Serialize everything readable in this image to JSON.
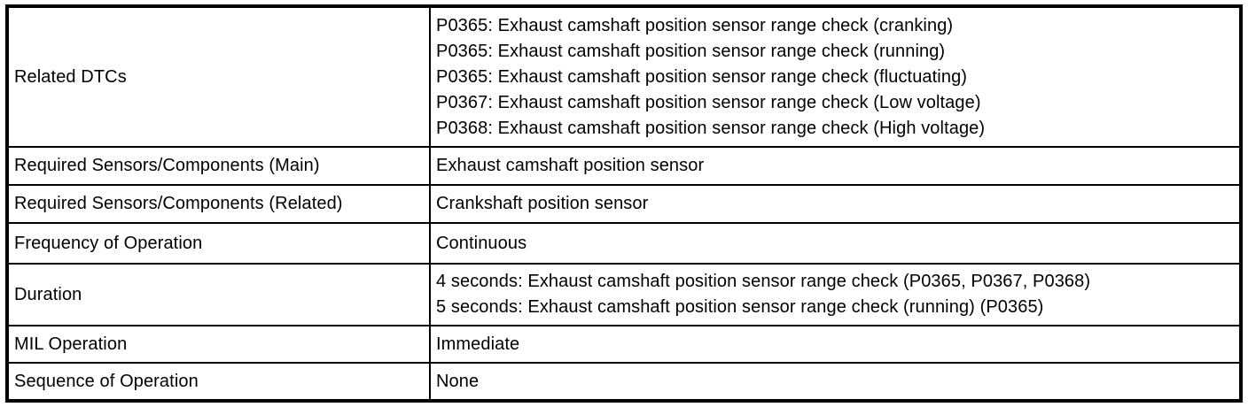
{
  "colors": {
    "border": "#000000",
    "text": "#000000",
    "background": "#ffffff"
  },
  "table": {
    "rows": [
      {
        "label": "Related DTCs",
        "values": [
          "P0365: Exhaust camshaft position sensor range check (cranking)",
          "P0365: Exhaust camshaft position sensor range check (running)",
          "P0365: Exhaust camshaft position sensor range check (fluctuating)",
          "P0367: Exhaust camshaft position sensor range check (Low voltage)",
          "P0368: Exhaust camshaft position sensor range check (High voltage)"
        ]
      },
      {
        "label": "Required Sensors/Components (Main)",
        "values": [
          "Exhaust camshaft position sensor"
        ]
      },
      {
        "label": "Required Sensors/Components (Related)",
        "values": [
          "Crankshaft position sensor"
        ]
      },
      {
        "label": "Frequency of Operation",
        "values": [
          "Continuous"
        ]
      },
      {
        "label": "Duration",
        "values": [
          "4 seconds: Exhaust camshaft position sensor range check (P0365, P0367, P0368)",
          "5 seconds: Exhaust camshaft position sensor range check (running) (P0365)"
        ]
      },
      {
        "label": "MIL Operation",
        "values": [
          "Immediate"
        ]
      },
      {
        "label": "Sequence of Operation",
        "values": [
          "None"
        ]
      }
    ]
  }
}
